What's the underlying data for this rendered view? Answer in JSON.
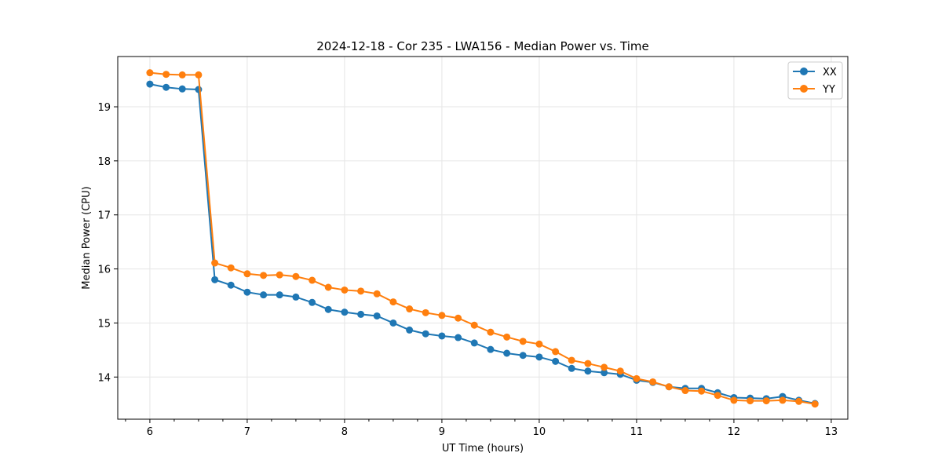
{
  "chart_data": {
    "type": "line",
    "title": "2024-12-18 - Cor 235 - LWA156 - Median Power vs. Time",
    "xlabel": "UT Time (hours)",
    "ylabel": "Median Power (CPU)",
    "xlim": [
      5.67,
      13.17
    ],
    "ylim": [
      13.22,
      19.93
    ],
    "xticks": [
      6,
      7,
      8,
      9,
      10,
      11,
      12,
      13
    ],
    "yticks": [
      14,
      15,
      16,
      17,
      18,
      19
    ],
    "grid": true,
    "legend_position": "top-right",
    "x": [
      6.0,
      6.167,
      6.333,
      6.5,
      6.667,
      6.833,
      7.0,
      7.167,
      7.333,
      7.5,
      7.667,
      7.833,
      8.0,
      8.167,
      8.333,
      8.5,
      8.667,
      8.833,
      9.0,
      9.167,
      9.333,
      9.5,
      9.667,
      9.833,
      10.0,
      10.167,
      10.333,
      10.5,
      10.667,
      10.833,
      11.0,
      11.167,
      11.333,
      11.5,
      11.667,
      11.833,
      12.0,
      12.167,
      12.333,
      12.5,
      12.667,
      12.833
    ],
    "series": [
      {
        "name": "XX",
        "color": "#1f77b4",
        "values": [
          19.42,
          19.36,
          19.33,
          19.32,
          15.8,
          15.7,
          15.57,
          15.52,
          15.52,
          15.48,
          15.38,
          15.25,
          15.2,
          15.16,
          15.13,
          15.0,
          14.87,
          14.8,
          14.76,
          14.73,
          14.63,
          14.51,
          14.44,
          14.4,
          14.37,
          14.29,
          14.16,
          14.11,
          14.08,
          14.05,
          13.94,
          13.9,
          13.82,
          13.79,
          13.79,
          13.71,
          13.62,
          13.61,
          13.6,
          13.64,
          13.57,
          13.51
        ]
      },
      {
        "name": "YY",
        "color": "#ff7f0e",
        "values": [
          19.63,
          19.6,
          19.59,
          19.59,
          16.11,
          16.02,
          15.91,
          15.88,
          15.89,
          15.86,
          15.79,
          15.66,
          15.61,
          15.59,
          15.54,
          15.39,
          15.26,
          15.19,
          15.14,
          15.09,
          14.96,
          14.83,
          14.74,
          14.66,
          14.61,
          14.47,
          14.31,
          14.25,
          14.18,
          14.11,
          13.97,
          13.91,
          13.82,
          13.75,
          13.74,
          13.66,
          13.57,
          13.56,
          13.56,
          13.57,
          13.55,
          13.5
        ]
      }
    ]
  }
}
